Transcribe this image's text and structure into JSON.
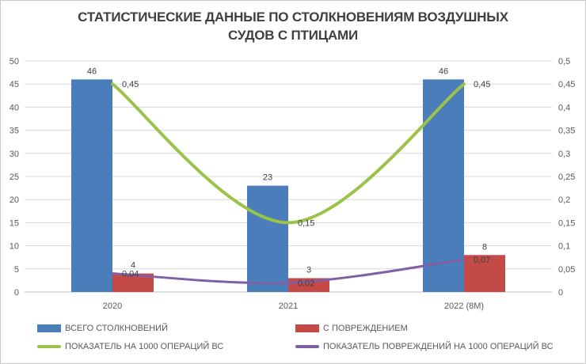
{
  "title": {
    "line1": "СТАТИСТИЧЕСКИЕ ДАННЫЕ ПО СТОЛКНОВЕНИЯМ ВОЗДУШНЫХ",
    "line2": "СУДОВ С ПТИЦАМИ"
  },
  "chart_data": {
    "type": "combo-bar-line",
    "categories": [
      "2020",
      "2021",
      "2022 (8М)"
    ],
    "series": [
      {
        "name": "ВСЕГО СТОЛКНОВЕНИЙ",
        "type": "bar",
        "axis": "left",
        "color": "#4A7DBA",
        "values": [
          46,
          23,
          46
        ],
        "labels": [
          "46",
          "23",
          "46"
        ]
      },
      {
        "name": "С ПОВРЕЖДЕНИЕМ",
        "type": "bar",
        "axis": "left",
        "color": "#C34A47",
        "values": [
          4,
          3,
          8
        ],
        "labels": [
          "4",
          "3",
          "8"
        ]
      },
      {
        "name": "ПОКАЗАТЕЛЬ НА 1000 ОПЕРАЦИЙ ВС",
        "type": "line",
        "axis": "right",
        "color": "#9BC34B",
        "values": [
          0.45,
          0.15,
          0.45
        ],
        "labels": [
          "0,45",
          "0,15",
          "0,45"
        ]
      },
      {
        "name": "ПОКАЗАТЕЛЬ ПОВРЕЖДЕНИЙ НА 1000 ОПЕРАЦИЙ ВС",
        "type": "line",
        "axis": "right",
        "color": "#7E60A5",
        "values": [
          0.04,
          0.02,
          0.07
        ],
        "labels": [
          "0,04",
          "0,02",
          "0,07"
        ]
      }
    ],
    "left_axis": {
      "min": 0,
      "max": 50,
      "step": 5,
      "tick_labels": [
        "0",
        "5",
        "10",
        "15",
        "20",
        "25",
        "30",
        "35",
        "40",
        "45",
        "50"
      ]
    },
    "right_axis": {
      "min": 0,
      "max": 0.5,
      "step": 0.05,
      "tick_labels": [
        "0",
        "0,05",
        "0,1",
        "0,15",
        "0,2",
        "0,25",
        "0,3",
        "0,35",
        "0,4",
        "0,45",
        "0,5"
      ]
    },
    "grid": true,
    "legend_position": "bottom"
  },
  "colors": {
    "title_text": "#404040",
    "axis_text": "#595959",
    "data_label_text": "#404040",
    "gridline": "#D9D9D9",
    "axis_line": "#BFBFBF",
    "background": "#FFFFFF",
    "border": "#C9C9C9"
  }
}
